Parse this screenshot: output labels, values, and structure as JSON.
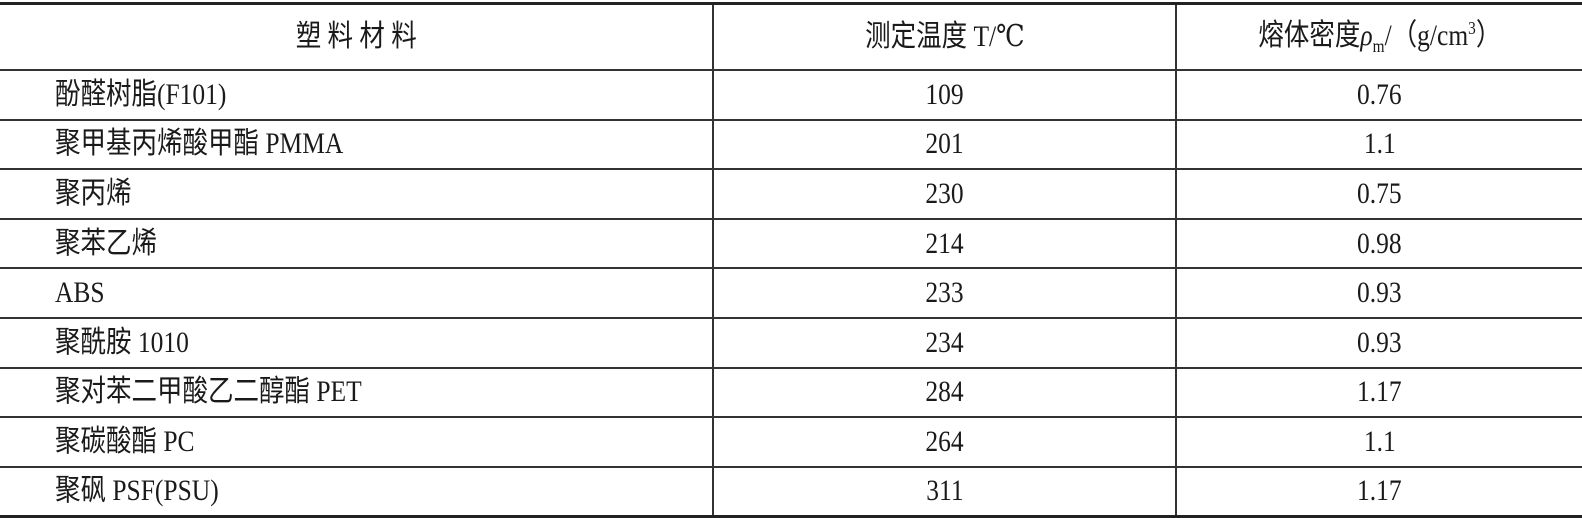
{
  "headers": {
    "material": "塑 料 材 料",
    "temperature": "测定温度 T/℃",
    "density_prefix": "熔体密度",
    "density_symbol": "ρ",
    "density_subscript": "m",
    "density_unit": "/（g/cm",
    "density_sup": "3",
    "density_close": "）"
  },
  "rows": [
    {
      "material": "酚醛树脂(F101)",
      "temperature": "109",
      "density": "0.76"
    },
    {
      "material": "聚甲基丙烯酸甲酯 PMMA",
      "temperature": "201",
      "density": "1.1"
    },
    {
      "material": "聚丙烯",
      "temperature": "230",
      "density": "0.75"
    },
    {
      "material": "聚苯乙烯",
      "temperature": "214",
      "density": "0.98"
    },
    {
      "material": "ABS",
      "temperature": "233",
      "density": "0.93"
    },
    {
      "material": "聚酰胺 1010",
      "temperature": "234",
      "density": "0.93"
    },
    {
      "material": "聚对苯二甲酸乙二醇酯 PET",
      "temperature": "284",
      "density": "1.17"
    },
    {
      "material": "聚碳酸酯 PC",
      "temperature": "264",
      "density": "1.1"
    },
    {
      "material": "聚砜 PSF(PSU)",
      "temperature": "311",
      "density": "1.17"
    }
  ]
}
